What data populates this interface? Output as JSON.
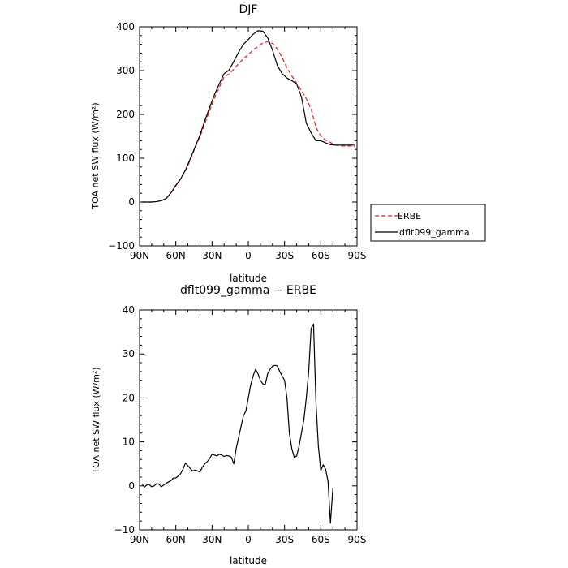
{
  "chart_data": [
    {
      "type": "line",
      "title": "DJF",
      "xlabel": "latitude",
      "ylabel": "TOA net SW flux (W/m²)",
      "xlim": [
        90,
        -90
      ],
      "ylim": [
        -100,
        400
      ],
      "x_ticks": [
        {
          "value": 90,
          "label": "90N"
        },
        {
          "value": 60,
          "label": "60N"
        },
        {
          "value": 30,
          "label": "30N"
        },
        {
          "value": 0,
          "label": "0"
        },
        {
          "value": -30,
          "label": "30S"
        },
        {
          "value": -60,
          "label": "60S"
        },
        {
          "value": -90,
          "label": "90S"
        }
      ],
      "y_ticks": [
        -100,
        0,
        100,
        200,
        300,
        400
      ],
      "legend_position": "outside-right",
      "series": [
        {
          "name": "ERBE",
          "color": "#e8201f",
          "dash": "dashed",
          "x": [
            88,
            84,
            80,
            76,
            72,
            68,
            64,
            60,
            56,
            52,
            48,
            44,
            40,
            36,
            32,
            28,
            24,
            20,
            16,
            12,
            8,
            4,
            0,
            -4,
            -8,
            -12,
            -16,
            -20,
            -24,
            -28,
            -32,
            -36,
            -40,
            -44,
            -48,
            -52,
            -56,
            -60,
            -64,
            -68,
            -72,
            -76,
            -80,
            -84,
            -88
          ],
          "y": [
            0,
            0,
            0,
            1,
            3,
            8,
            20,
            37,
            52,
            71,
            96,
            124,
            149,
            179,
            209,
            238,
            262,
            286,
            292,
            303,
            316,
            327,
            337,
            347,
            355,
            363,
            366,
            362,
            349,
            330,
            306,
            288,
            271,
            254,
            236,
            212,
            170,
            151,
            141,
            136,
            130,
            128,
            128,
            128,
            127
          ]
        },
        {
          "name": "dflt099_gamma",
          "color": "#000000",
          "dash": "solid",
          "x": [
            88,
            84,
            80,
            76,
            72,
            68,
            64,
            60,
            56,
            52,
            48,
            44,
            40,
            36,
            32,
            28,
            24,
            20,
            16,
            12,
            8,
            4,
            0,
            -4,
            -8,
            -12,
            -16,
            -20,
            -24,
            -28,
            -32,
            -36,
            -40,
            -44,
            -48,
            -52,
            -56,
            -60,
            -64,
            -68,
            -72,
            -76,
            -80,
            -84,
            -88
          ],
          "y": [
            0,
            0,
            0,
            1,
            3,
            8,
            21,
            38,
            53,
            73,
            99,
            126,
            153,
            186,
            216,
            245,
            270,
            293,
            301,
            321,
            342,
            360,
            371,
            383,
            391,
            390,
            375,
            347,
            312,
            293,
            283,
            277,
            270,
            240,
            180,
            158,
            140,
            140,
            135,
            131,
            130,
            130,
            130,
            130,
            130
          ]
        }
      ]
    },
    {
      "type": "line",
      "title": "dflt099_gamma − ERBE",
      "xlabel": "latitude",
      "ylabel": "TOA net SW flux (W/m²)",
      "xlim": [
        90,
        -90
      ],
      "ylim": [
        -10,
        40
      ],
      "x_ticks": [
        {
          "value": 90,
          "label": "90N"
        },
        {
          "value": 60,
          "label": "60N"
        },
        {
          "value": 30,
          "label": "30N"
        },
        {
          "value": 0,
          "label": "0"
        },
        {
          "value": -30,
          "label": "30S"
        },
        {
          "value": -60,
          "label": "60S"
        },
        {
          "value": -90,
          "label": "90S"
        }
      ],
      "y_ticks": [
        -10,
        0,
        10,
        20,
        30,
        40
      ],
      "series": [
        {
          "name": "dflt099_gamma − ERBE",
          "color": "#000000",
          "dash": "solid",
          "x": [
            88,
            86,
            84,
            82,
            80,
            78,
            76,
            74,
            72,
            70,
            68,
            66,
            64,
            62,
            60,
            58,
            56,
            54,
            52,
            50,
            48,
            46,
            44,
            42,
            40,
            38,
            36,
            34,
            32,
            30,
            28,
            26,
            24,
            22,
            20,
            18,
            16,
            14,
            12,
            10,
            8,
            6,
            4,
            2,
            0,
            -2,
            -4,
            -6,
            -8,
            -10,
            -12,
            -14,
            -16,
            -18,
            -20,
            -22,
            -24,
            -26,
            -28,
            -30,
            -32,
            -34,
            -36,
            -38,
            -40,
            -42,
            -44,
            -46,
            -48,
            -50,
            -52,
            -54,
            -56,
            -58,
            -60,
            -62,
            -64,
            -66,
            -68,
            -70,
            -72,
            -74,
            -76,
            -78,
            -80,
            -82,
            -84,
            -86,
            -88
          ],
          "y": [
            0.5,
            -0.3,
            0.2,
            0.3,
            -0.2,
            0.0,
            0.5,
            0.4,
            -0.2,
            0.2,
            0.6,
            0.9,
            1.2,
            1.8,
            1.8,
            2.2,
            2.8,
            3.8,
            5.2,
            4.6,
            3.9,
            3.4,
            3.6,
            3.4,
            3.1,
            4.3,
            5.0,
            5.5,
            6.2,
            7.2,
            7.0,
            6.8,
            7.2,
            7.0,
            6.7,
            6.9,
            6.8,
            6.5,
            5.0,
            8.5,
            11.0,
            13.5,
            16.0,
            17.0,
            20.0,
            23.0,
            25.0,
            26.5,
            25.5,
            24.0,
            23.2,
            23.0,
            25.5,
            26.5,
            27.2,
            27.4,
            27.3,
            26.0,
            25.0,
            24.0,
            20.0,
            12.0,
            8.5,
            6.5,
            6.8,
            9.0,
            12.0,
            15.0,
            20.0,
            26.0,
            35.8,
            36.8,
            19.0,
            9.0,
            3.5,
            4.8,
            3.8,
            1.0,
            -8.5,
            -0.5,
            null,
            null,
            null,
            null,
            null,
            null,
            null,
            null,
            null
          ]
        }
      ]
    }
  ],
  "legend": {
    "items": [
      {
        "label": "ERBE",
        "color": "#e8201f",
        "dash": "dashed"
      },
      {
        "label": "dflt099_gamma",
        "color": "#000000",
        "dash": "solid"
      }
    ]
  }
}
